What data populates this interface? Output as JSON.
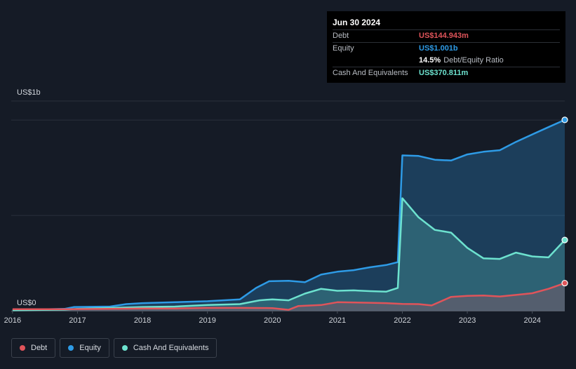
{
  "colors": {
    "debt": "#e0545a",
    "equity": "#2e9be6",
    "cash": "#6de2cf",
    "background": "#151b26",
    "grid": "#2a313c"
  },
  "tooltip": {
    "date": "Jun 30 2024",
    "debt_label": "Debt",
    "debt_value": "US$144.943m",
    "equity_label": "Equity",
    "equity_value": "US$1.001b",
    "ratio_value": "14.5%",
    "ratio_label": "Debt/Equity Ratio",
    "cash_label": "Cash And Equivalents",
    "cash_value": "US$370.811m"
  },
  "legend": [
    {
      "label": "Debt",
      "color": "#e0545a"
    },
    {
      "label": "Equity",
      "color": "#2e9be6"
    },
    {
      "label": "Cash And Equivalents",
      "color": "#6de2cf"
    }
  ],
  "chart_data": {
    "type": "area",
    "ylabel_top": "US$1b",
    "ylabel_bottom": "US$0",
    "ylim": [
      0,
      1.1
    ],
    "xlim": [
      2015.98,
      2024.5
    ],
    "x_ticks": [
      "2016",
      "2017",
      "2018",
      "2019",
      "2020",
      "2021",
      "2022",
      "2023",
      "2024"
    ],
    "series": [
      {
        "name": "Equity",
        "x": [
          2016.0,
          2016.8,
          2016.95,
          2017.5,
          2017.75,
          2018.0,
          2018.5,
          2019.0,
          2019.5,
          2019.75,
          2019.95,
          2020.25,
          2020.5,
          2020.75,
          2021.0,
          2021.25,
          2021.5,
          2021.75,
          2021.93,
          2022.0,
          2022.25,
          2022.5,
          2022.75,
          2023.0,
          2023.25,
          2023.5,
          2023.75,
          2024.0,
          2024.25,
          2024.5
        ],
        "y": [
          0.004,
          0.01,
          0.02,
          0.022,
          0.035,
          0.04,
          0.045,
          0.05,
          0.06,
          0.12,
          0.155,
          0.157,
          0.15,
          0.19,
          0.205,
          0.213,
          0.228,
          0.24,
          0.255,
          0.815,
          0.812,
          0.792,
          0.788,
          0.82,
          0.834,
          0.842,
          0.886,
          0.925,
          0.963,
          1.001
        ]
      },
      {
        "name": "Cash And Equivalents",
        "x": [
          2016.0,
          2016.8,
          2017.0,
          2017.5,
          2018.0,
          2018.5,
          2019.0,
          2019.5,
          2019.8,
          2020.0,
          2020.25,
          2020.5,
          2020.75,
          2021.0,
          2021.25,
          2021.5,
          2021.75,
          2021.93,
          2022.0,
          2022.25,
          2022.5,
          2022.75,
          2023.0,
          2023.25,
          2023.5,
          2023.75,
          2024.0,
          2024.25,
          2024.5
        ],
        "y": [
          0.003,
          0.006,
          0.01,
          0.015,
          0.02,
          0.022,
          0.03,
          0.035,
          0.055,
          0.06,
          0.055,
          0.09,
          0.115,
          0.105,
          0.107,
          0.103,
          0.1,
          0.12,
          0.59,
          0.49,
          0.424,
          0.41,
          0.33,
          0.275,
          0.272,
          0.305,
          0.285,
          0.28,
          0.371
        ]
      },
      {
        "name": "Debt",
        "x": [
          2016.0,
          2016.8,
          2017.0,
          2017.5,
          2018.0,
          2018.5,
          2019.0,
          2019.5,
          2020.0,
          2020.25,
          2020.4,
          2020.75,
          2021.0,
          2021.5,
          2021.75,
          2022.0,
          2022.25,
          2022.45,
          2022.75,
          2023.0,
          2023.25,
          2023.5,
          2023.75,
          2024.0,
          2024.25,
          2024.5
        ],
        "y": [
          0.008,
          0.008,
          0.009,
          0.01,
          0.012,
          0.012,
          0.015,
          0.015,
          0.014,
          0.005,
          0.025,
          0.03,
          0.045,
          0.042,
          0.04,
          0.036,
          0.035,
          0.028,
          0.073,
          0.078,
          0.08,
          0.075,
          0.083,
          0.092,
          0.115,
          0.145
        ]
      }
    ]
  }
}
